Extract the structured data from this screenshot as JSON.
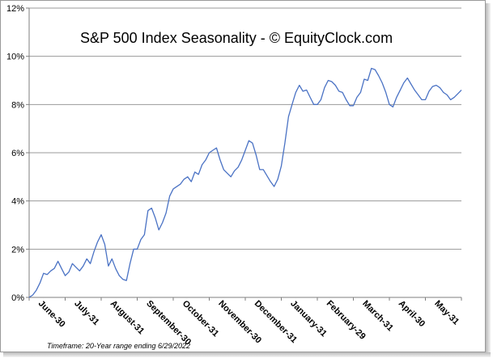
{
  "chart_data": {
    "type": "line",
    "title": "S&P 500 Index Seasonality - © EquityClock.com",
    "footnote": "Timeframe: 20-Year range  ending  6/29/2022",
    "xlabel": "",
    "ylabel": "",
    "ylim": [
      0,
      12
    ],
    "y_ticks": [
      {
        "value": 0,
        "label": "0%"
      },
      {
        "value": 2,
        "label": "2%"
      },
      {
        "value": 4,
        "label": "4%"
      },
      {
        "value": 6,
        "label": "6%"
      },
      {
        "value": 8,
        "label": "8%"
      },
      {
        "value": 10,
        "label": "10%"
      },
      {
        "value": 12,
        "label": "12%"
      }
    ],
    "x_range": [
      0,
      12
    ],
    "x_ticks": [
      {
        "pos": 0.2,
        "label": "June-30"
      },
      {
        "pos": 1.2,
        "label": "July-31"
      },
      {
        "pos": 2.2,
        "label": "August-31"
      },
      {
        "pos": 3.2,
        "label": "September-30"
      },
      {
        "pos": 4.2,
        "label": "October-31"
      },
      {
        "pos": 5.2,
        "label": "November-30"
      },
      {
        "pos": 6.2,
        "label": "December-31"
      },
      {
        "pos": 7.2,
        "label": "January-31"
      },
      {
        "pos": 8.2,
        "label": "February-29"
      },
      {
        "pos": 9.2,
        "label": "March-31"
      },
      {
        "pos": 10.2,
        "label": "April-30"
      },
      {
        "pos": 11.2,
        "label": "May-31"
      }
    ],
    "grid": true,
    "series": [
      {
        "name": "S&P 500 Index Seasonality",
        "color": "#4a72c4",
        "x": [
          0,
          0.1,
          0.2,
          0.3,
          0.4,
          0.5,
          0.6,
          0.7,
          0.8,
          0.9,
          1.0,
          1.1,
          1.2,
          1.3,
          1.4,
          1.5,
          1.6,
          1.7,
          1.8,
          1.9,
          2.0,
          2.1,
          2.2,
          2.3,
          2.4,
          2.5,
          2.6,
          2.7,
          2.8,
          2.9,
          3.0,
          3.1,
          3.2,
          3.3,
          3.4,
          3.5,
          3.6,
          3.7,
          3.8,
          3.9,
          4.0,
          4.1,
          4.2,
          4.3,
          4.4,
          4.5,
          4.6,
          4.7,
          4.8,
          4.9,
          5.0,
          5.1,
          5.2,
          5.3,
          5.4,
          5.5,
          5.6,
          5.7,
          5.8,
          5.9,
          6.0,
          6.1,
          6.2,
          6.3,
          6.4,
          6.5,
          6.6,
          6.7,
          6.8,
          6.9,
          7.0,
          7.1,
          7.2,
          7.3,
          7.4,
          7.5,
          7.6,
          7.7,
          7.8,
          7.9,
          8.0,
          8.1,
          8.2,
          8.3,
          8.4,
          8.5,
          8.6,
          8.7,
          8.8,
          8.9,
          9.0,
          9.1,
          9.2,
          9.3,
          9.4,
          9.5,
          9.6,
          9.7,
          9.8,
          9.9,
          10.0,
          10.1,
          10.2,
          10.3,
          10.4,
          10.5,
          10.6,
          10.7,
          10.8,
          10.9,
          11.0,
          11.1,
          11.2,
          11.3,
          11.4,
          11.5,
          11.6,
          11.7,
          11.8,
          11.9,
          12.0
        ],
        "values": [
          0.0,
          0.1,
          0.3,
          0.6,
          1.0,
          0.95,
          1.1,
          1.2,
          1.5,
          1.2,
          0.9,
          1.05,
          1.4,
          1.25,
          1.1,
          1.3,
          1.6,
          1.4,
          1.9,
          2.3,
          2.6,
          2.2,
          1.3,
          1.6,
          1.2,
          0.9,
          0.75,
          0.7,
          1.4,
          2.0,
          2.0,
          2.4,
          2.6,
          3.6,
          3.7,
          3.3,
          2.8,
          3.1,
          3.5,
          4.2,
          4.5,
          4.6,
          4.7,
          4.9,
          5.0,
          4.8,
          5.2,
          5.1,
          5.5,
          5.7,
          6.0,
          6.1,
          6.2,
          5.7,
          5.3,
          5.15,
          5.0,
          5.25,
          5.4,
          5.7,
          6.1,
          6.5,
          6.4,
          5.9,
          5.3,
          5.3,
          5.05,
          4.8,
          4.6,
          4.9,
          5.45,
          6.4,
          7.5,
          8.0,
          8.5,
          8.8,
          8.55,
          8.6,
          8.3,
          8.0,
          8.0,
          8.2,
          8.7,
          9.0,
          8.95,
          8.8,
          8.55,
          8.5,
          8.2,
          7.95,
          7.95,
          8.3,
          8.5,
          9.05,
          9.0,
          9.5,
          9.45,
          9.2,
          8.9,
          8.5,
          8.0,
          7.9,
          8.3,
          8.6,
          8.9,
          9.1,
          8.85,
          8.6,
          8.4,
          8.2,
          8.2,
          8.55,
          8.75,
          8.8,
          8.7,
          8.5,
          8.4,
          8.2,
          8.3,
          8.45,
          8.6
        ]
      }
    ]
  }
}
